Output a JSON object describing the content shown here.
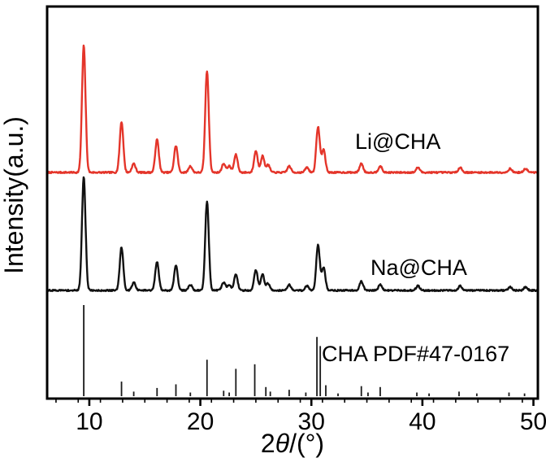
{
  "figure": {
    "background": "#ffffff",
    "frame_color": "#000000"
  },
  "chart_data": {
    "type": "line",
    "chart_kind": "XRD powder diffraction patterns (stacked) with reference stick pattern",
    "title": "",
    "xlabel": "2θ/(°)",
    "ylabel": "Intensity(a.u.)",
    "x_range": [
      6.2,
      50.4
    ],
    "x_ticks": [
      10,
      20,
      30,
      40,
      50
    ],
    "x_minor_tick_step": 2,
    "y_ticks": [],
    "grid": false,
    "legend_position": "inline-right",
    "series": [
      {
        "name": "Li@CHA",
        "style": "curve",
        "color": "#e4352a",
        "label_color": "#e4352a",
        "peaks": [
          [
            9.5,
            100
          ],
          [
            12.9,
            40
          ],
          [
            14.0,
            7
          ],
          [
            16.1,
            26
          ],
          [
            17.8,
            21
          ],
          [
            19.1,
            5
          ],
          [
            20.6,
            80
          ],
          [
            22.1,
            7
          ],
          [
            22.6,
            5
          ],
          [
            23.2,
            14
          ],
          [
            25.0,
            17
          ],
          [
            25.6,
            13
          ],
          [
            26.1,
            6
          ],
          [
            28.0,
            5
          ],
          [
            29.6,
            4
          ],
          [
            30.6,
            36
          ],
          [
            31.1,
            18
          ],
          [
            34.5,
            7
          ],
          [
            36.2,
            5
          ],
          [
            39.6,
            4
          ],
          [
            43.4,
            4
          ],
          [
            47.9,
            3
          ],
          [
            49.3,
            3
          ]
        ]
      },
      {
        "name": "Na@CHA",
        "style": "curve",
        "color": "#111111",
        "label_color": "#111111",
        "peaks": [
          [
            9.5,
            100
          ],
          [
            12.9,
            38
          ],
          [
            14.0,
            7
          ],
          [
            16.1,
            25
          ],
          [
            17.8,
            22
          ],
          [
            19.1,
            5
          ],
          [
            20.6,
            78
          ],
          [
            22.1,
            7
          ],
          [
            22.6,
            5
          ],
          [
            23.2,
            14
          ],
          [
            25.0,
            18
          ],
          [
            25.6,
            14
          ],
          [
            26.1,
            6
          ],
          [
            28.0,
            5
          ],
          [
            29.6,
            4
          ],
          [
            30.6,
            40
          ],
          [
            31.1,
            20
          ],
          [
            34.5,
            8
          ],
          [
            36.2,
            5
          ],
          [
            39.6,
            4
          ],
          [
            43.4,
            4
          ],
          [
            47.9,
            3
          ],
          [
            49.3,
            3
          ]
        ]
      },
      {
        "name": "CHA PDF#47-0167",
        "style": "sticks",
        "color": "#1a1a1a",
        "label_color": "#4d4d4d",
        "peaks": [
          [
            9.5,
            100
          ],
          [
            12.9,
            16
          ],
          [
            14.0,
            5
          ],
          [
            16.1,
            9
          ],
          [
            17.8,
            13
          ],
          [
            19.1,
            4
          ],
          [
            20.6,
            40
          ],
          [
            22.1,
            6
          ],
          [
            22.6,
            4
          ],
          [
            23.2,
            30
          ],
          [
            24.9,
            35
          ],
          [
            25.9,
            10
          ],
          [
            26.3,
            5
          ],
          [
            28.0,
            7
          ],
          [
            29.5,
            4
          ],
          [
            30.5,
            65
          ],
          [
            30.8,
            55
          ],
          [
            31.3,
            12
          ],
          [
            32.4,
            3
          ],
          [
            34.5,
            11
          ],
          [
            35.1,
            4
          ],
          [
            36.2,
            10
          ],
          [
            39.5,
            4
          ],
          [
            40.6,
            3
          ],
          [
            43.3,
            5
          ],
          [
            44.9,
            3
          ],
          [
            47.8,
            4
          ],
          [
            49.2,
            3
          ]
        ]
      }
    ]
  }
}
